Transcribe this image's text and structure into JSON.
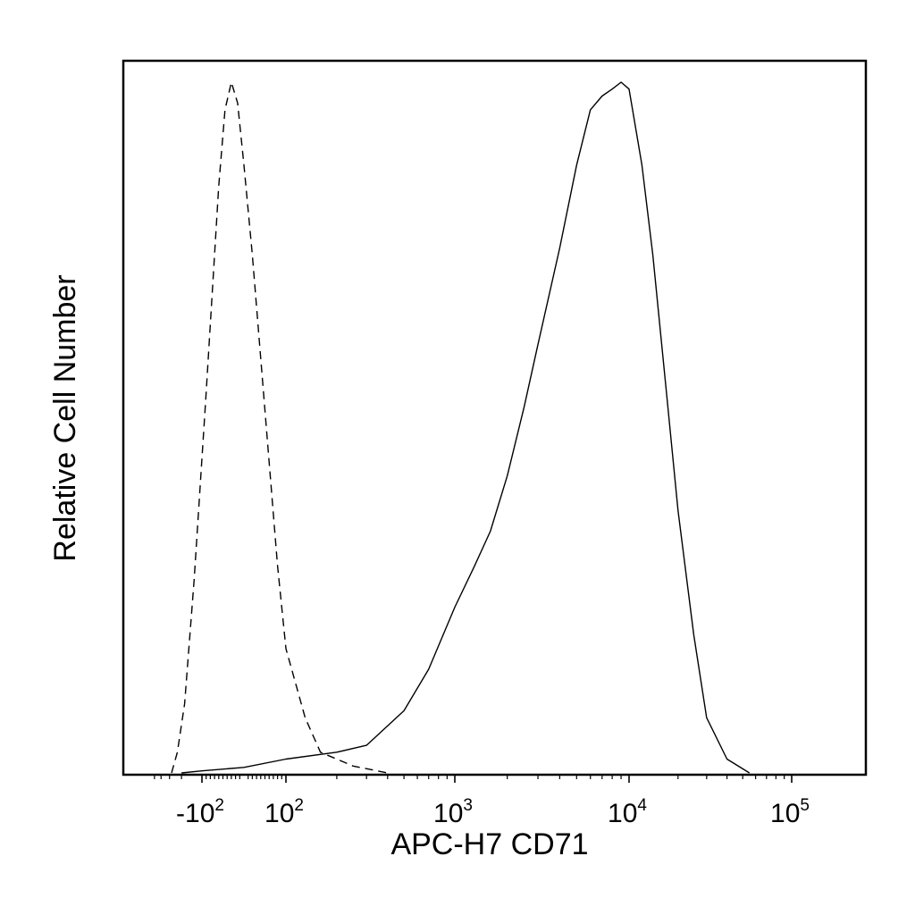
{
  "chart_data": {
    "type": "area",
    "xlabel": "APC-H7 CD71",
    "ylabel": "Relative Cell Number",
    "x_scale": "biexponential",
    "x_ticks": [
      {
        "value": -100,
        "base": "-10",
        "exp": "2"
      },
      {
        "value": 100,
        "base": "10",
        "exp": "2"
      },
      {
        "value": 1000,
        "base": "10",
        "exp": "3"
      },
      {
        "value": 10000,
        "base": "10",
        "exp": "4"
      },
      {
        "value": 100000,
        "base": "10",
        "exp": "5"
      }
    ],
    "y_ticks": "none",
    "grid": false,
    "colors": {
      "line": "#000000",
      "frame": "#000000",
      "background": "#ffffff"
    },
    "series": [
      {
        "line_style": "dashed",
        "points": [
          [
            -280,
            0.0
          ],
          [
            -230,
            0.03
          ],
          [
            -180,
            0.1
          ],
          [
            -130,
            0.28
          ],
          [
            -90,
            0.55
          ],
          [
            -60,
            0.85
          ],
          [
            -45,
            0.96
          ],
          [
            -30,
            1.0
          ],
          [
            -15,
            0.97
          ],
          [
            0,
            0.88
          ],
          [
            20,
            0.75
          ],
          [
            40,
            0.6
          ],
          [
            60,
            0.45
          ],
          [
            80,
            0.3
          ],
          [
            100,
            0.18
          ],
          [
            130,
            0.08
          ],
          [
            160,
            0.03
          ],
          [
            250,
            0.01
          ],
          [
            400,
            0.0
          ]
        ]
      },
      {
        "line_style": "solid",
        "points": [
          [
            -200,
            0.0
          ],
          [
            -100,
            0.003
          ],
          [
            0,
            0.008
          ],
          [
            100,
            0.02
          ],
          [
            200,
            0.03
          ],
          [
            300,
            0.04
          ],
          [
            500,
            0.09
          ],
          [
            700,
            0.15
          ],
          [
            1000,
            0.24
          ],
          [
            1300,
            0.3
          ],
          [
            1600,
            0.35
          ],
          [
            2000,
            0.43
          ],
          [
            2500,
            0.53
          ],
          [
            3000,
            0.62
          ],
          [
            4000,
            0.76
          ],
          [
            5000,
            0.88
          ],
          [
            6000,
            0.96
          ],
          [
            7000,
            0.98
          ],
          [
            8000,
            0.99
          ],
          [
            9000,
            1.0
          ],
          [
            10000,
            0.99
          ],
          [
            12000,
            0.88
          ],
          [
            14000,
            0.75
          ],
          [
            17000,
            0.55
          ],
          [
            20000,
            0.38
          ],
          [
            25000,
            0.2
          ],
          [
            30000,
            0.08
          ],
          [
            40000,
            0.02
          ],
          [
            55000,
            0.0
          ]
        ]
      }
    ]
  }
}
